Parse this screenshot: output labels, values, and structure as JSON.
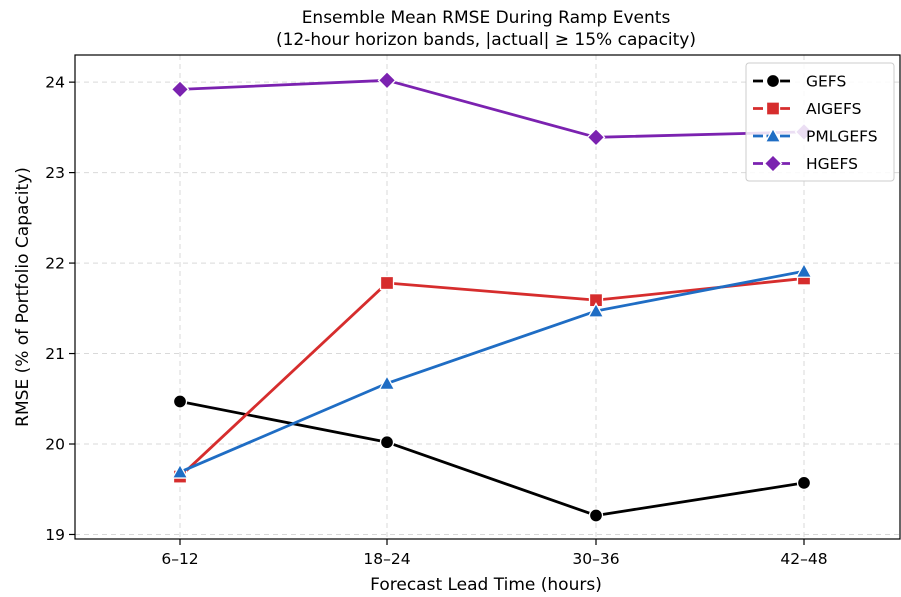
{
  "chart_data": {
    "type": "line",
    "title": "Ensemble Mean RMSE During Ramp Events",
    "subtitle": "(12-hour horizon bands, |actual| ≥ 15% capacity)",
    "xlabel": "Forecast Lead Time (hours)",
    "ylabel": "RMSE (% of Portfolio Capacity)",
    "categories": [
      "6–12",
      "18–24",
      "30–36",
      "42–48"
    ],
    "ylim": [
      18.95,
      24.3
    ],
    "yticks": [
      19,
      20,
      21,
      22,
      23,
      24
    ],
    "grid": true,
    "legend_position": "top-right",
    "series": [
      {
        "name": "GEFS",
        "color": "#000000",
        "marker": "circle",
        "values": [
          20.47,
          20.02,
          19.21,
          19.57
        ]
      },
      {
        "name": "AIGEFS",
        "color": "#d62d2d",
        "marker": "square",
        "values": [
          19.64,
          21.78,
          21.59,
          21.83
        ]
      },
      {
        "name": "PMLGEFS",
        "color": "#1f6dc4",
        "marker": "triangle",
        "values": [
          19.69,
          20.67,
          21.47,
          21.91
        ]
      },
      {
        "name": "HGEFS",
        "color": "#7b22b0",
        "marker": "diamond",
        "values": [
          23.92,
          24.02,
          23.39,
          23.45
        ]
      }
    ]
  }
}
